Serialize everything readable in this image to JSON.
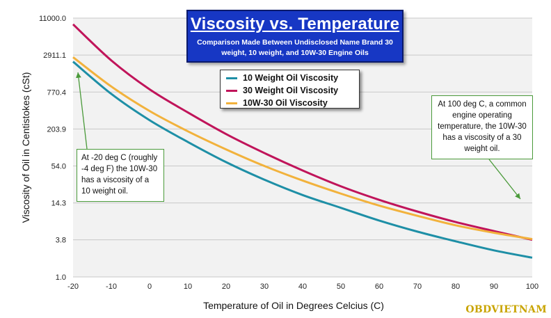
{
  "title": {
    "main": "Viscosity vs. Temperature",
    "subtitle": "Comparison Made Between Undisclosed Name Brand 30 weight, 10 weight, and 10W-30 Engine Oils"
  },
  "annotations": {
    "left": "At -20 deg C (roughly -4 deg F) the 10W-30 has a viscosity of a 10 weight oil.",
    "right": "At 100 deg C, a common engine operating temperature, the 10W-30 has a viscosity of a 30 weight oil."
  },
  "watermark": "OBDVIETNAM",
  "colors": {
    "ten_weight": "#1e8fa6",
    "thirty_weight": "#c0145a",
    "ten_w_thirty": "#f2b23c",
    "plot_background": "#f2f2f2",
    "annotation_arrow": "#4a9a3a",
    "title_box": "#1737c4"
  },
  "chart_data": {
    "type": "line",
    "xlabel": "Temperature of Oil in Degrees Celcius (C)",
    "ylabel": "Viscosity of Oil in Centistokes (cSt)",
    "y_scale": "log",
    "xlim": [
      -20,
      100
    ],
    "ylim": [
      1.0,
      11000.0
    ],
    "x_ticks": [
      -20,
      -10,
      0,
      10,
      20,
      30,
      40,
      50,
      60,
      70,
      80,
      90,
      100
    ],
    "y_ticks": [
      1.0,
      3.8,
      14.3,
      54.0,
      203.9,
      770.4,
      2911.1,
      11000.0
    ],
    "y_tick_labels": [
      "1.0",
      "3.8",
      "14.3",
      "54.0",
      "203.9",
      "770.4",
      "2911.1",
      "11000.0"
    ],
    "x": [
      -20,
      -10,
      0,
      10,
      20,
      30,
      40,
      50,
      60,
      70,
      80,
      90,
      100
    ],
    "grid": true,
    "legend_position": "top-center",
    "series": [
      {
        "name": "10 Weight Oil Viscosity",
        "values": [
          2300,
          720,
          280,
          128,
          62,
          33,
          19,
          12,
          7.6,
          5.1,
          3.6,
          2.6,
          2.0
        ]
      },
      {
        "name": "30 Weight Oil Viscosity",
        "values": [
          8800,
          2400,
          850,
          370,
          170,
          86,
          46,
          26,
          16,
          10.5,
          7.2,
          5.2,
          3.8
        ]
      },
      {
        "name": "10W-30 Oil Viscosity",
        "values": [
          2700,
          940,
          390,
          188,
          98,
          54,
          32,
          20,
          13,
          9.0,
          6.4,
          4.9,
          3.9
        ]
      }
    ]
  }
}
